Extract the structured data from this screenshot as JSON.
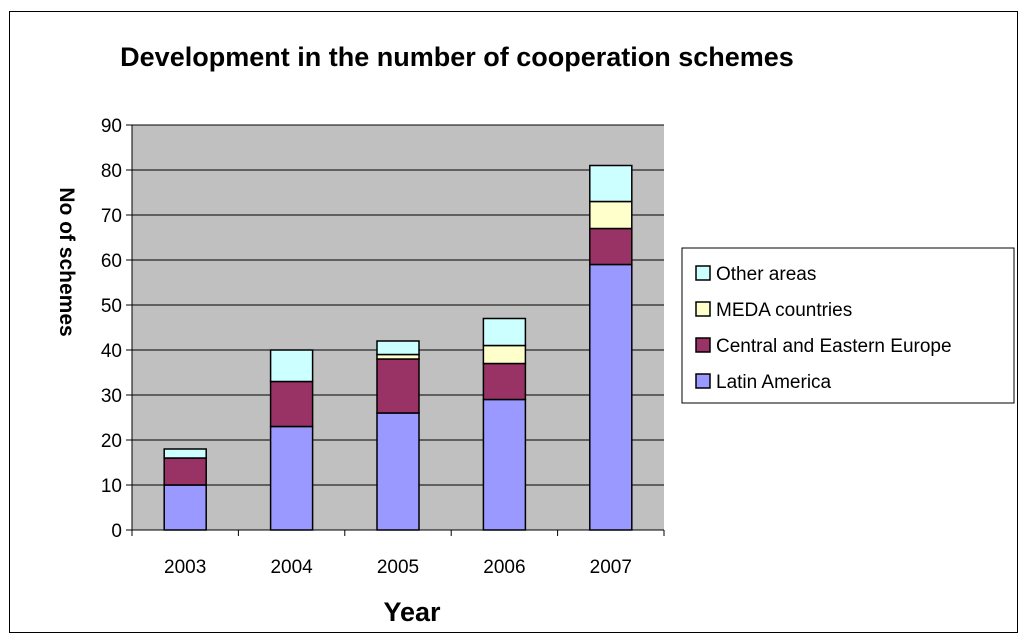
{
  "chart_data": {
    "type": "bar",
    "stacked": true,
    "title": "Development in the number of cooperation schemes",
    "xlabel": "Year",
    "ylabel": "No of schemes",
    "categories": [
      "2003",
      "2004",
      "2005",
      "2006",
      "2007"
    ],
    "ylim": [
      0,
      90
    ],
    "yticks": [
      0,
      10,
      20,
      30,
      40,
      50,
      60,
      70,
      80,
      90
    ],
    "grid": true,
    "legend_position": "right",
    "series": [
      {
        "name": "Latin America",
        "color": "#9999ff",
        "values": [
          10,
          23,
          26,
          29,
          59
        ]
      },
      {
        "name": "Central and Eastern Europe",
        "color": "#993366",
        "values": [
          6,
          10,
          12,
          8,
          8
        ]
      },
      {
        "name": "MEDA countries",
        "color": "#ffffcc",
        "values": [
          0,
          0,
          1,
          4,
          6
        ]
      },
      {
        "name": "Other areas",
        "color": "#ccffff",
        "values": [
          2,
          7,
          3,
          6,
          8
        ]
      }
    ],
    "legend_order": [
      "Other areas",
      "MEDA countries",
      "Central and Eastern Europe",
      "Latin America"
    ],
    "plot_background": "#c0c0c0"
  }
}
